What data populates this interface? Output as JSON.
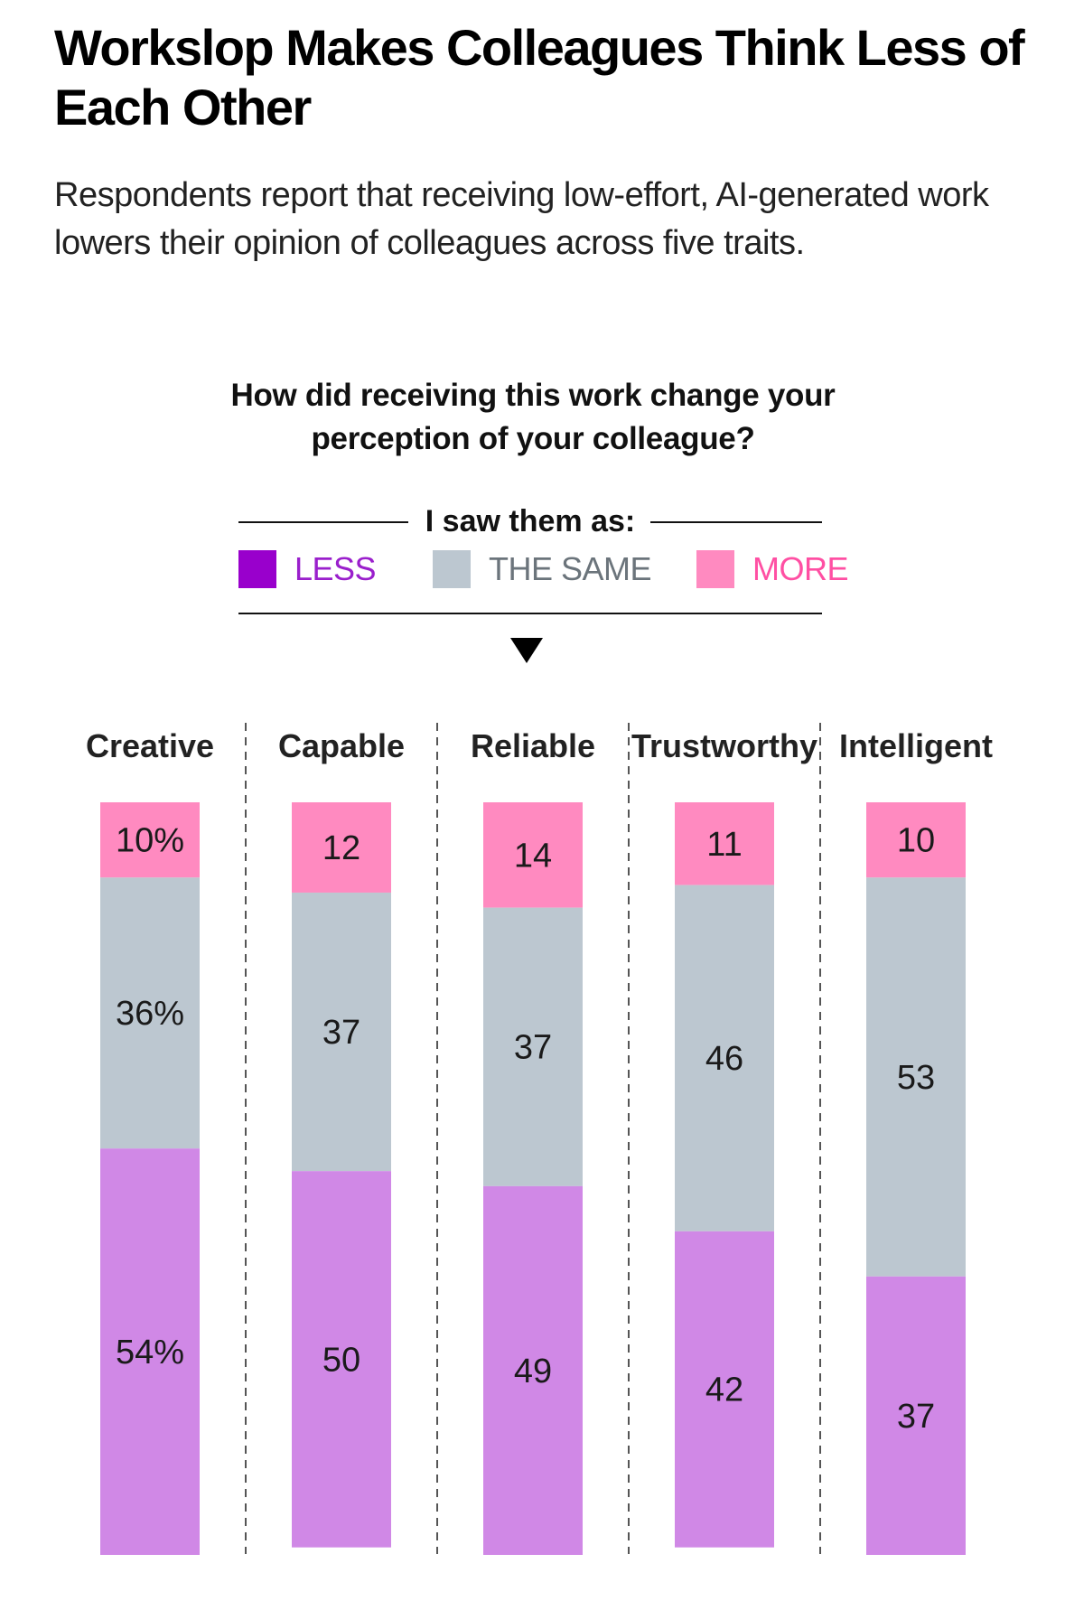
{
  "title": "Workslop Makes Colleagues Think Less of Each Other",
  "subtitle": "Respondents report that receiving low-effort, AI-generated work lowers their opinion of colleagues across five traits.",
  "question": "How did receiving this work change your perception of your colleague?",
  "legend": {
    "heading": "I saw them as:",
    "items": [
      {
        "key": "less",
        "label": "LESS",
        "swatch_color": "#9900cc",
        "text_color": "#9a1fcc"
      },
      {
        "key": "same",
        "label": "THE SAME",
        "swatch_color": "#bcc7d0",
        "text_color": "#6b747b"
      },
      {
        "key": "more",
        "label": "MORE",
        "swatch_color": "#ff8ac0",
        "text_color": "#ff4fa3"
      }
    ],
    "arrow_icon": "down-triangle"
  },
  "chart_data": {
    "type": "bar",
    "stacked": true,
    "orientation": "vertical",
    "title": "How did receiving this work change your perception of your colleague?",
    "xlabel": "",
    "ylabel": "",
    "ylim": [
      0,
      100
    ],
    "grid": false,
    "legend_position": "top",
    "categories": [
      "Creative",
      "Capable",
      "Reliable",
      "Trustworthy",
      "Intelligent"
    ],
    "series": [
      {
        "name": "MORE",
        "color": "#ff8ac0",
        "values": [
          10,
          12,
          14,
          11,
          10
        ],
        "labels": [
          "10%",
          "12",
          "14",
          "11",
          "10"
        ]
      },
      {
        "name": "THE SAME",
        "color": "#bcc7d0",
        "values": [
          36,
          37,
          37,
          46,
          53
        ],
        "labels": [
          "36%",
          "37",
          "37",
          "46",
          "53"
        ]
      },
      {
        "name": "LESS",
        "color": "#d088e6",
        "values": [
          54,
          50,
          49,
          42,
          37
        ],
        "labels": [
          "54%",
          "50",
          "49",
          "42",
          "37"
        ]
      }
    ]
  }
}
